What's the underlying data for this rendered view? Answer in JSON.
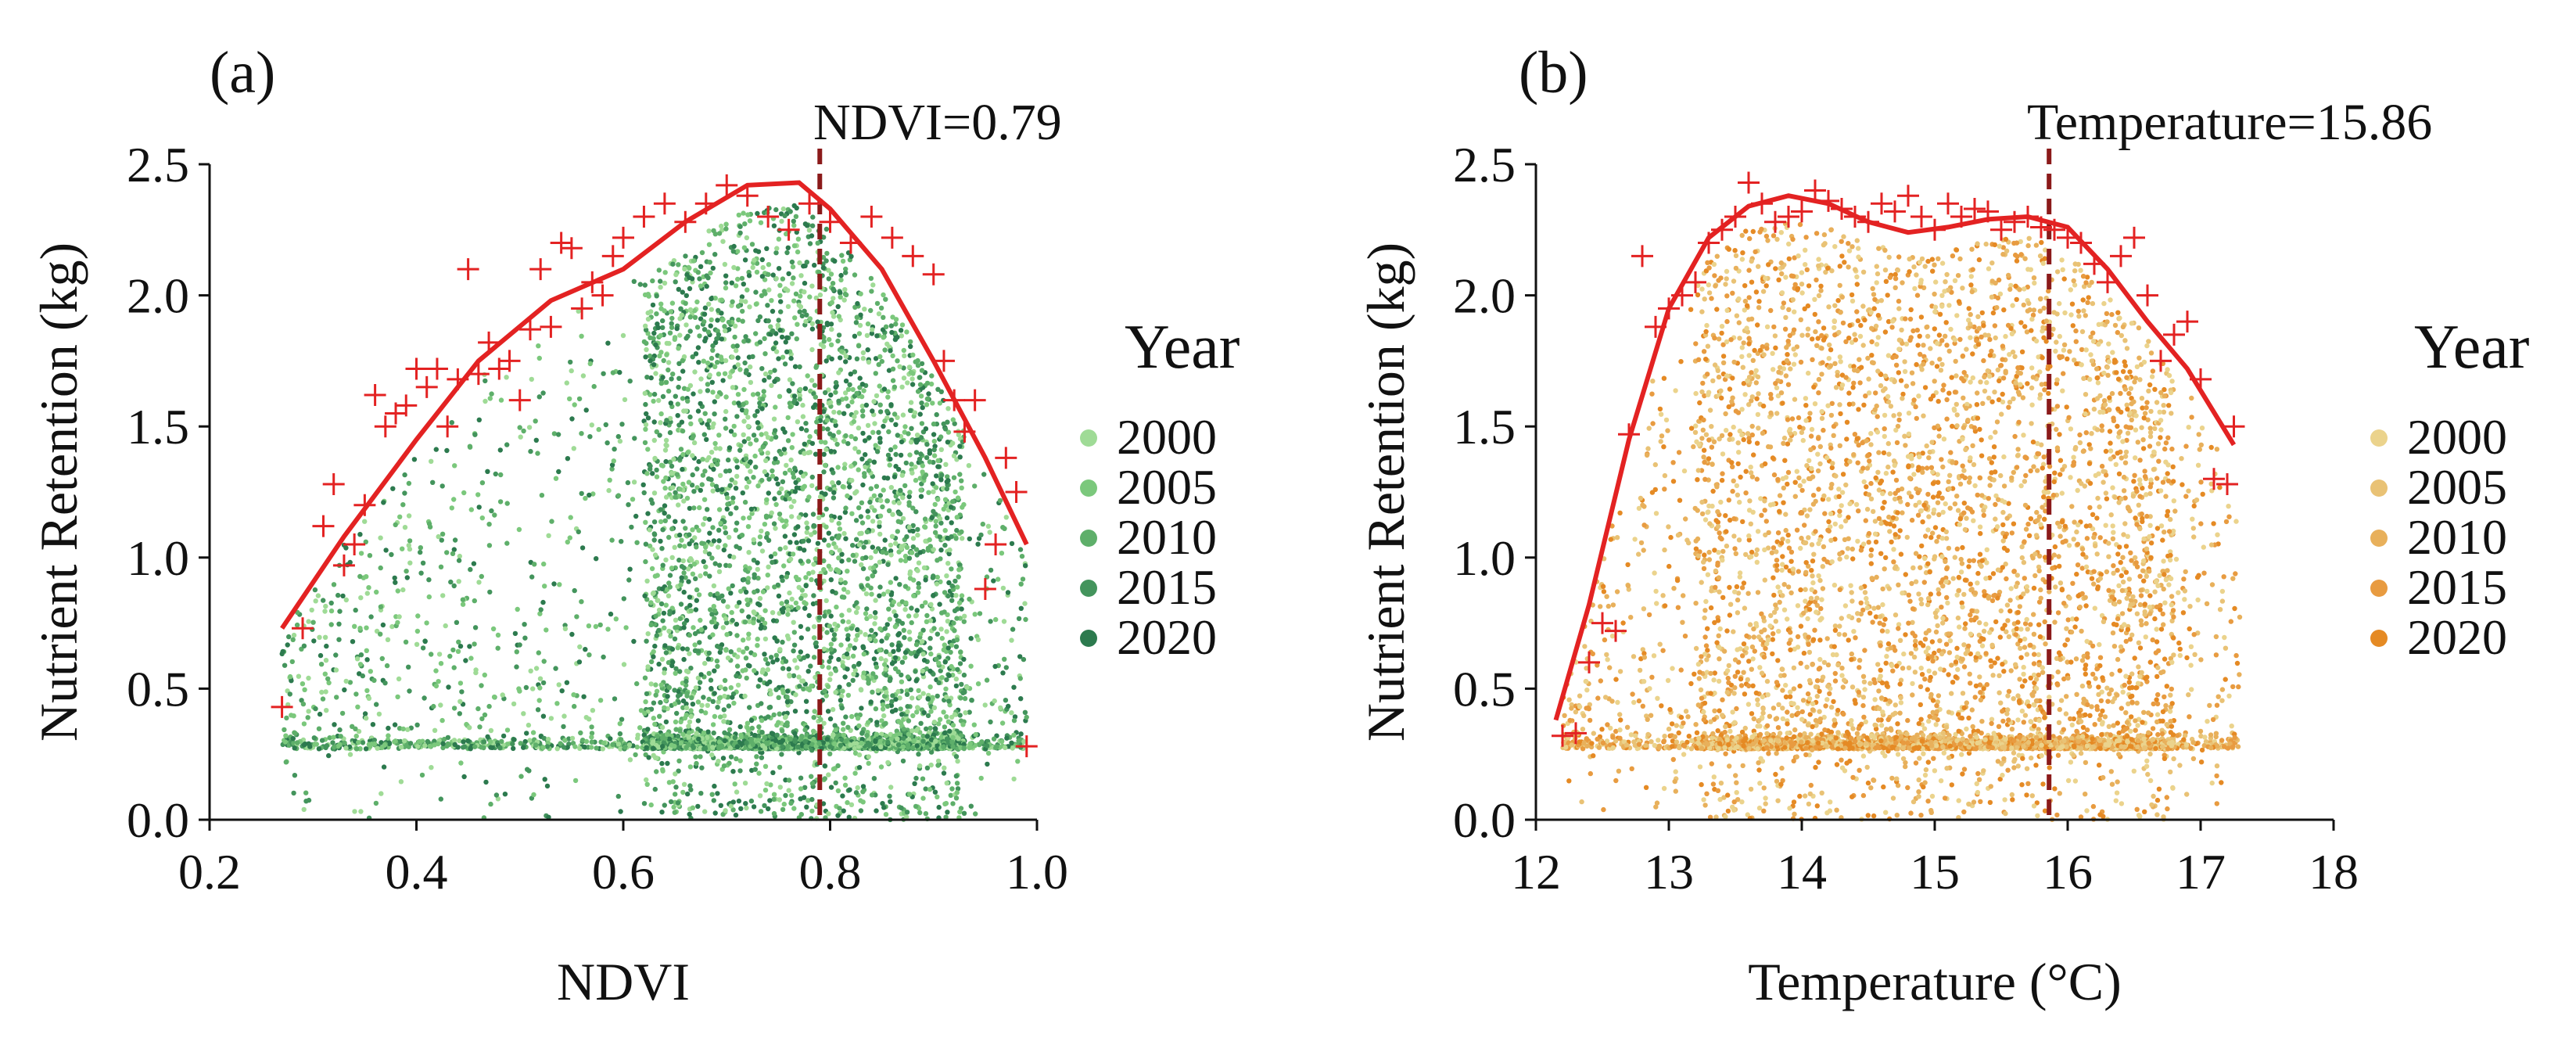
{
  "chart_data": [
    {
      "type": "scatter",
      "panel_label": "(a)",
      "xlabel": "NDVI",
      "ylabel": "Nutrient Retention (kg)",
      "xlim": [
        0.2,
        1.0
      ],
      "ylim": [
        0.0,
        2.5
      ],
      "xticks": [
        "0.2",
        "0.4",
        "0.6",
        "0.8",
        "1.0"
      ],
      "yticks": [
        "0.0",
        "0.5",
        "1.0",
        "1.5",
        "2.0",
        "2.5"
      ],
      "threshold": {
        "value": 0.79,
        "label": "NDVI=0.79",
        "color": "#8b1a1a"
      },
      "legend": {
        "title": "Year",
        "entries": [
          {
            "label": "2000",
            "color": "#9fdb96"
          },
          {
            "label": "2005",
            "color": "#7bc87c"
          },
          {
            "label": "2010",
            "color": "#5eaf6a"
          },
          {
            "label": "2015",
            "color": "#43945c"
          },
          {
            "label": "2020",
            "color": "#2c7a4e"
          }
        ]
      },
      "point_cloud": {
        "x_range": [
          0.27,
          0.99
        ],
        "dense_x_range": [
          0.62,
          0.93
        ],
        "y_floor": 0.27,
        "colors": [
          "#9fdb96",
          "#7bc87c",
          "#5eaf6a",
          "#43945c",
          "#2c7a4e"
        ]
      },
      "fit_line": {
        "color": "#e32222",
        "x": [
          0.27,
          0.33,
          0.4,
          0.46,
          0.53,
          0.6,
          0.66,
          0.72,
          0.77,
          0.8,
          0.85,
          0.9,
          0.95,
          0.99
        ],
        "y": [
          0.73,
          1.08,
          1.45,
          1.75,
          1.98,
          2.1,
          2.28,
          2.42,
          2.43,
          2.33,
          2.1,
          1.75,
          1.38,
          1.05
        ]
      },
      "max_points": {
        "marker": "+",
        "color": "#e32222",
        "x": [
          0.27,
          0.29,
          0.31,
          0.32,
          0.33,
          0.34,
          0.35,
          0.36,
          0.37,
          0.38,
          0.39,
          0.4,
          0.41,
          0.42,
          0.43,
          0.44,
          0.45,
          0.46,
          0.47,
          0.48,
          0.49,
          0.5,
          0.51,
          0.52,
          0.53,
          0.54,
          0.55,
          0.56,
          0.57,
          0.58,
          0.59,
          0.6,
          0.62,
          0.64,
          0.66,
          0.68,
          0.7,
          0.72,
          0.74,
          0.76,
          0.78,
          0.8,
          0.82,
          0.84,
          0.86,
          0.88,
          0.9,
          0.91,
          0.92,
          0.93,
          0.94,
          0.95,
          0.96,
          0.97,
          0.98,
          0.99
        ],
        "y": [
          0.43,
          0.73,
          1.12,
          1.28,
          0.97,
          1.05,
          1.2,
          1.62,
          1.5,
          1.55,
          1.58,
          1.72,
          1.65,
          1.72,
          1.5,
          1.68,
          2.1,
          1.7,
          1.82,
          1.72,
          1.75,
          1.6,
          1.87,
          2.1,
          1.88,
          2.2,
          2.18,
          1.95,
          2.05,
          2.0,
          2.15,
          2.22,
          2.3,
          2.35,
          2.28,
          2.35,
          2.42,
          2.38,
          2.3,
          2.25,
          2.35,
          2.28,
          2.2,
          2.3,
          2.22,
          2.15,
          2.08,
          1.75,
          1.6,
          1.48,
          1.6,
          0.88,
          1.05,
          1.38,
          1.25,
          0.28
        ]
      }
    },
    {
      "type": "scatter",
      "panel_label": "(b)",
      "xlabel": "Temperature (°C)",
      "ylabel": "Nutrient Retention (kg)",
      "xlim": [
        12,
        18
      ],
      "ylim": [
        0.0,
        2.5
      ],
      "xticks": [
        "12",
        "13",
        "14",
        "15",
        "16",
        "17",
        "18"
      ],
      "yticks": [
        "0.0",
        "0.5",
        "1.0",
        "1.5",
        "2.0",
        "2.5"
      ],
      "threshold": {
        "value": 15.86,
        "label": "Temperature=15.86",
        "color": "#8b1a1a"
      },
      "legend": {
        "title": "Year",
        "entries": [
          {
            "label": "2000",
            "color": "#ebd38c"
          },
          {
            "label": "2005",
            "color": "#e9c275"
          },
          {
            "label": "2010",
            "color": "#e8b05b"
          },
          {
            "label": "2015",
            "color": "#e89b40"
          },
          {
            "label": "2020",
            "color": "#e58a24"
          }
        ]
      },
      "point_cloud": {
        "x_range": [
          12.2,
          17.3
        ],
        "dense_x_range": [
          13.2,
          16.8
        ],
        "y_floor": 0.27,
        "colors": [
          "#ebd38c",
          "#e9c275",
          "#e8b05b",
          "#e89b40",
          "#e58a24"
        ]
      },
      "fit_line": {
        "color": "#e32222",
        "x": [
          12.15,
          12.4,
          12.7,
          13.0,
          13.3,
          13.6,
          13.9,
          14.2,
          14.5,
          14.8,
          15.1,
          15.4,
          15.7,
          16.0,
          16.3,
          16.6,
          16.9,
          17.25
        ],
        "y": [
          0.38,
          0.82,
          1.45,
          1.95,
          2.22,
          2.34,
          2.38,
          2.35,
          2.28,
          2.24,
          2.26,
          2.29,
          2.3,
          2.26,
          2.1,
          1.9,
          1.72,
          1.43
        ]
      },
      "max_points": {
        "marker": "+",
        "color": "#e32222",
        "x": [
          12.2,
          12.3,
          12.4,
          12.5,
          12.6,
          12.7,
          12.8,
          12.9,
          13.0,
          13.1,
          13.2,
          13.3,
          13.4,
          13.5,
          13.6,
          13.7,
          13.8,
          13.9,
          14.0,
          14.1,
          14.2,
          14.3,
          14.4,
          14.5,
          14.6,
          14.7,
          14.8,
          14.9,
          15.0,
          15.1,
          15.2,
          15.3,
          15.4,
          15.5,
          15.6,
          15.7,
          15.8,
          15.9,
          16.0,
          16.1,
          16.2,
          16.3,
          16.4,
          16.5,
          16.6,
          16.7,
          16.8,
          16.9,
          17.0,
          17.1,
          17.2,
          17.25
        ],
        "y": [
          0.32,
          0.33,
          0.6,
          0.75,
          0.72,
          1.47,
          2.15,
          1.88,
          1.95,
          2.0,
          2.05,
          2.2,
          2.25,
          2.3,
          2.43,
          2.35,
          2.28,
          2.3,
          2.32,
          2.4,
          2.36,
          2.33,
          2.3,
          2.28,
          2.35,
          2.32,
          2.38,
          2.3,
          2.25,
          2.35,
          2.3,
          2.33,
          2.32,
          2.25,
          2.28,
          2.3,
          2.26,
          2.25,
          2.22,
          2.2,
          2.12,
          2.05,
          2.15,
          2.22,
          2.0,
          1.75,
          1.85,
          1.9,
          1.68,
          1.3,
          1.28,
          1.5
        ]
      }
    }
  ]
}
